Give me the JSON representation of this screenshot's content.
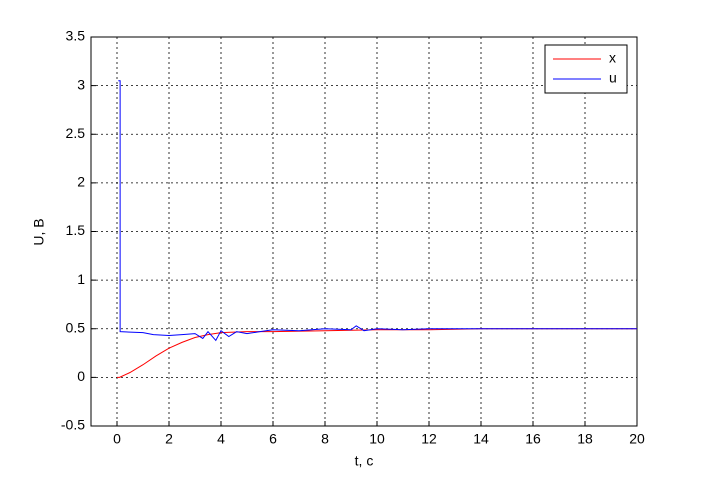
{
  "chart_data": {
    "type": "line",
    "xlabel": "t, c",
    "ylabel": "U, В",
    "xlim": [
      -1,
      20
    ],
    "ylim": [
      -0.5,
      3.5
    ],
    "xticks": [
      0,
      2,
      4,
      6,
      8,
      10,
      12,
      14,
      16,
      18,
      20
    ],
    "yticks": [
      -0.5,
      0,
      0.5,
      1,
      1.5,
      2,
      2.5,
      3,
      3.5
    ],
    "grid": true,
    "legend": "upper-right",
    "series": [
      {
        "name": "x",
        "color": "#ff0000",
        "x": [
          0,
          0.1,
          0.5,
          1,
          1.5,
          2,
          2.5,
          3,
          3.5,
          4,
          5,
          6,
          8,
          10,
          12,
          14,
          16,
          18,
          20
        ],
        "values": [
          0,
          0,
          0.05,
          0.13,
          0.22,
          0.3,
          0.36,
          0.41,
          0.44,
          0.46,
          0.47,
          0.47,
          0.48,
          0.49,
          0.49,
          0.5,
          0.5,
          0.5,
          0.5
        ]
      },
      {
        "name": "u",
        "color": "#0000ff",
        "x": [
          0.05,
          0.12,
          0.12,
          1,
          1.4,
          2,
          2.5,
          3,
          3.3,
          3.5,
          3.8,
          4,
          4.3,
          4.6,
          5,
          5.5,
          6,
          7,
          8,
          9,
          9.2,
          9.5,
          10,
          11,
          12,
          14,
          16,
          18,
          20
        ],
        "values": [
          3.05,
          3.05,
          0.47,
          0.46,
          0.44,
          0.43,
          0.44,
          0.45,
          0.4,
          0.47,
          0.38,
          0.48,
          0.42,
          0.47,
          0.45,
          0.47,
          0.49,
          0.48,
          0.5,
          0.49,
          0.53,
          0.48,
          0.5,
          0.49,
          0.5,
          0.5,
          0.5,
          0.5,
          0.5
        ]
      }
    ]
  }
}
